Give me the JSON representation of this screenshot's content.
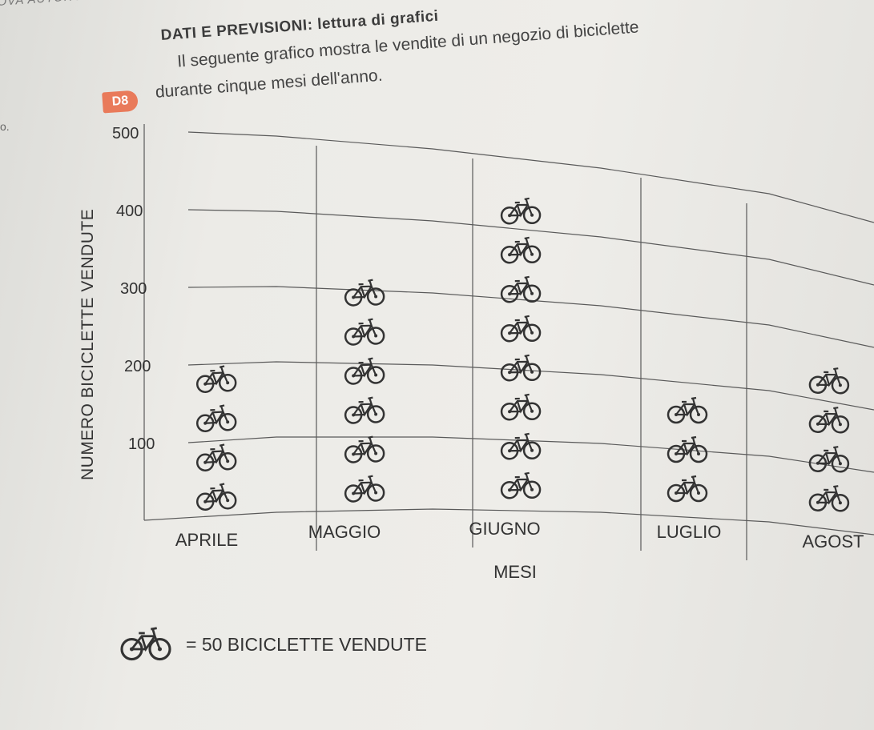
{
  "page": {
    "header": "OVA AUTONOMA • A",
    "section_title": "DATI E PREVISIONI: lettura di grafici",
    "exercise_badge": "D8",
    "intro_line1": "Il seguente grafico mostra le vendite di un negozio di biciclette",
    "intro_line2": "durante cinque mesi dell'anno.",
    "margin_mark": "o."
  },
  "chart_data": {
    "type": "pictogram",
    "categories": [
      "APRILE",
      "MAGGIO",
      "GIUGNO",
      "LUGLIO",
      "AGOST"
    ],
    "values": [
      200,
      300,
      400,
      150,
      200
    ],
    "unit_value": 50,
    "icon": "bicycle-icon",
    "xlabel": "MESI",
    "ylabel": "NUMERO BICICLETTE VENDUTE",
    "yticks": [
      100,
      200,
      300,
      400,
      500
    ],
    "ylim": [
      0,
      500
    ],
    "grid": true,
    "legend": {
      "text": "= 50 BICICLETTE VENDUTE",
      "placement": "bottom-left"
    }
  }
}
